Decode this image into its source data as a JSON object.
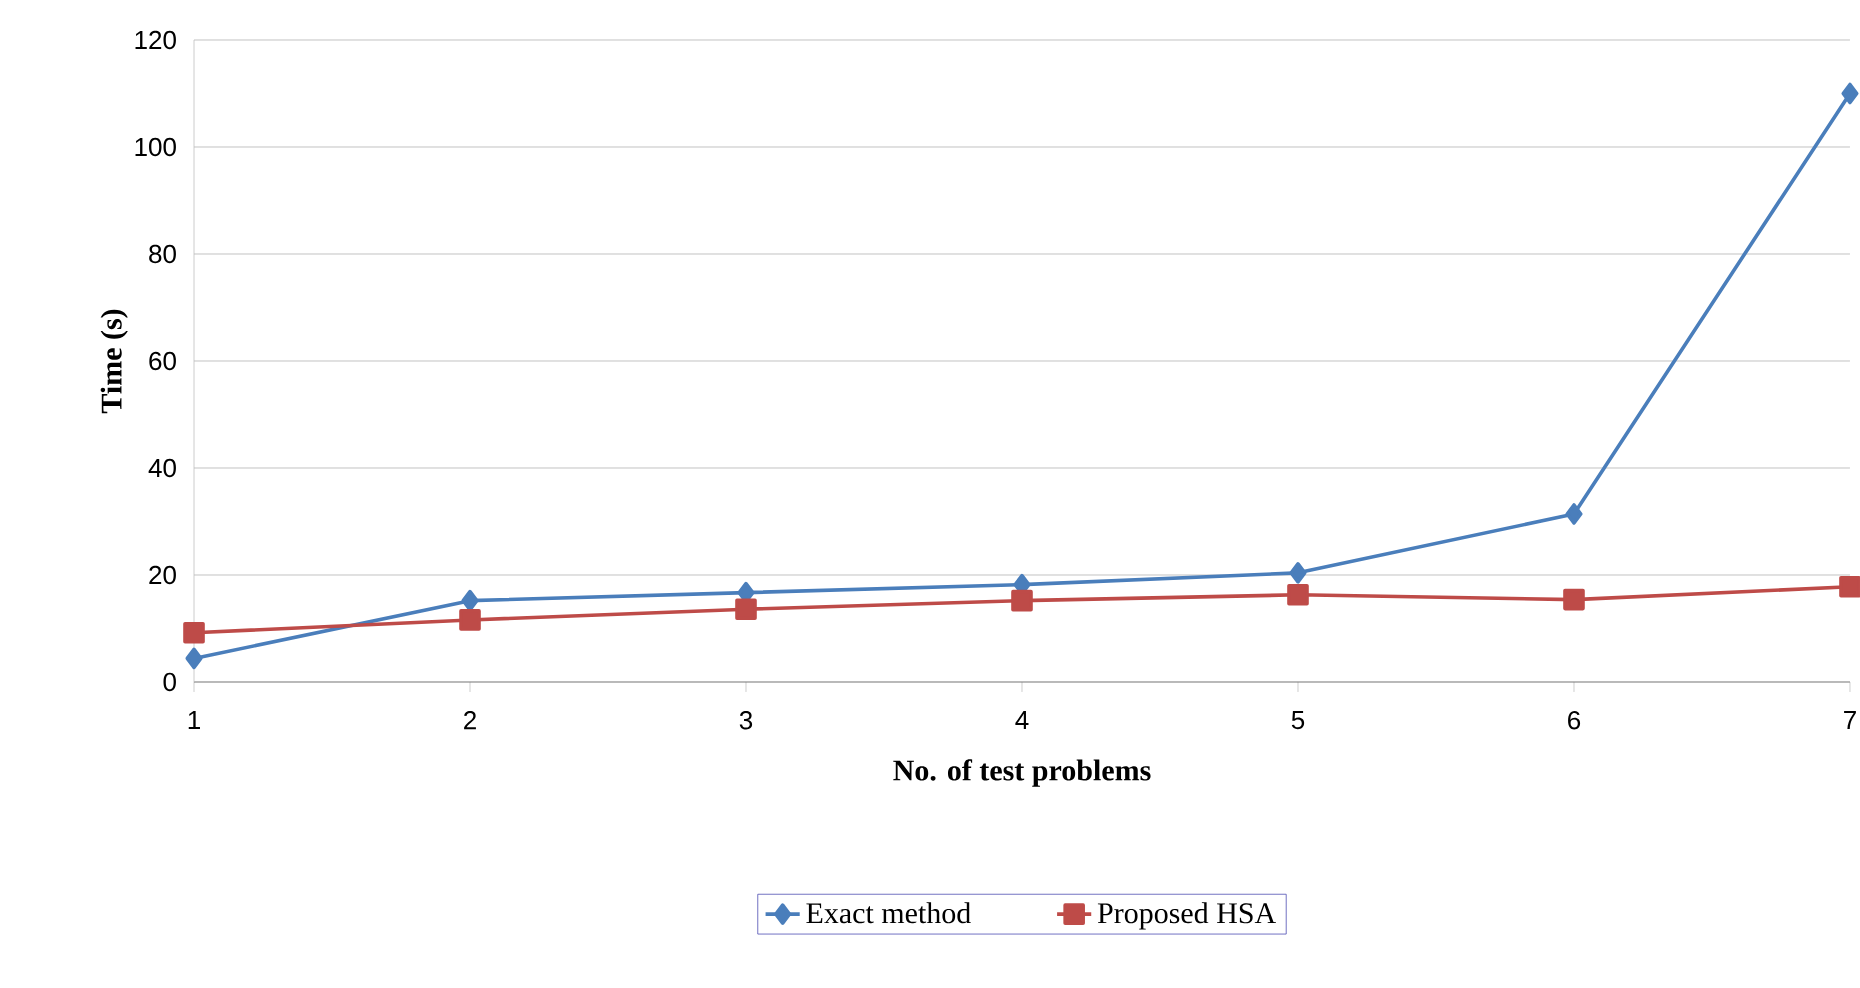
{
  "chart_data": {
    "type": "line",
    "xlabel": "No. of test problems",
    "ylabel": "Time (s)",
    "x": [
      1,
      2,
      3,
      4,
      5,
      6,
      7
    ],
    "xlim": [
      1,
      7
    ],
    "xticks": [
      1,
      2,
      3,
      4,
      5,
      6,
      7
    ],
    "ylim": [
      0,
      120
    ],
    "yticks": [
      0,
      20,
      40,
      60,
      80,
      100,
      120
    ],
    "grid": "y",
    "legend": "bottom",
    "series": [
      {
        "name": "Exact method",
        "color": "#4a7ebb",
        "marker": "diamond",
        "values": [
          4.4,
          15.2,
          16.7,
          18.2,
          20.4,
          31.4,
          110
        ]
      },
      {
        "name": "Proposed HSA",
        "color": "#be4b48",
        "marker": "square",
        "values": [
          9.2,
          11.6,
          13.6,
          15.2,
          16.3,
          15.4,
          17.8
        ]
      }
    ]
  }
}
